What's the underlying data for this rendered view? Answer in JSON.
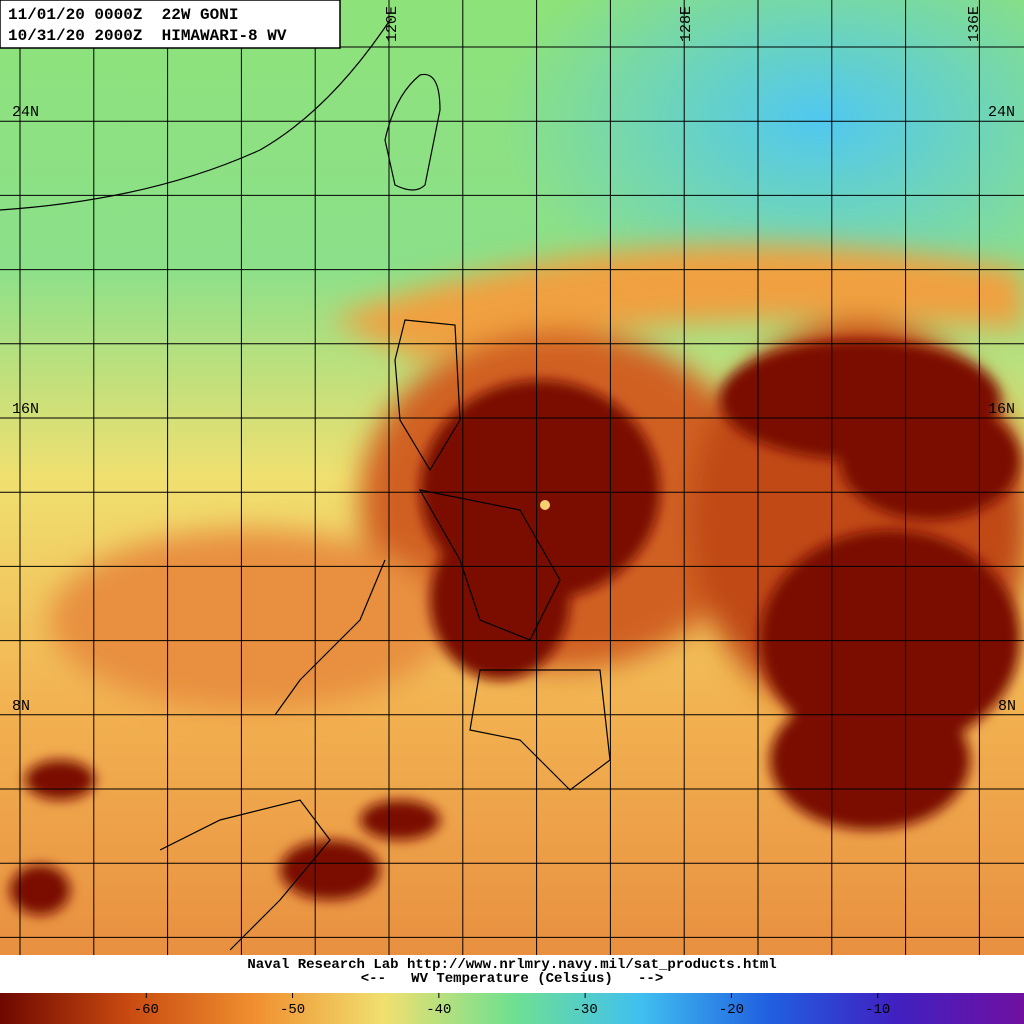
{
  "header": {
    "lines": [
      "11/01/20 0000Z  22W GONI",
      "10/31/20 2000Z  HIMAWARI-8 WV"
    ]
  },
  "map": {
    "lat_labels": [
      "24N",
      "16N",
      "8N"
    ],
    "lon_labels": [
      "120E",
      "128E",
      "136E"
    ]
  },
  "footer": {
    "credit": "Naval Research Lab http://www.nrlmry.navy.mil/sat_products.html",
    "scale_title": "<--   WV Temperature (Celsius)   -->"
  },
  "colorbar": {
    "range": [
      -70,
      0
    ],
    "ticks": [
      -60,
      -50,
      -40,
      -30,
      -20,
      -10
    ],
    "colors": [
      "#6e0800",
      "#c84a10",
      "#f09030",
      "#f0e070",
      "#70e090",
      "#40c0f0",
      "#2060e0",
      "#4020c0",
      "#7010a0"
    ]
  }
}
